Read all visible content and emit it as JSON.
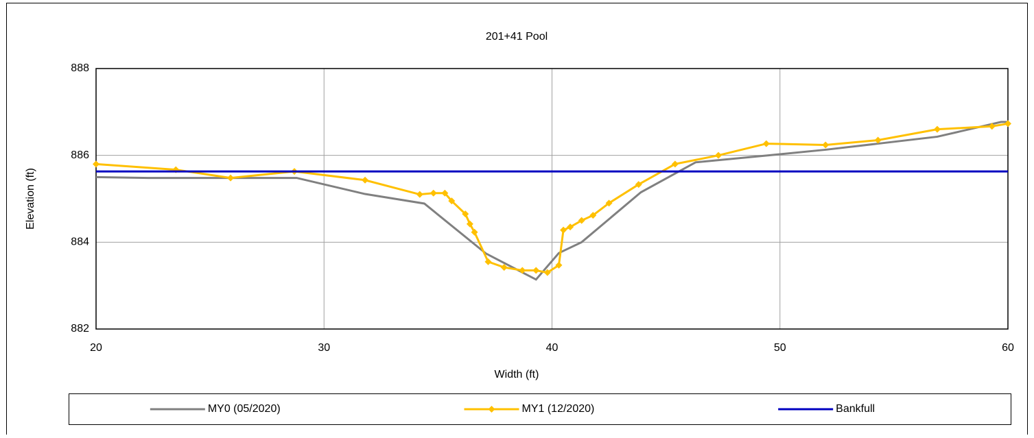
{
  "chart_data": {
    "type": "line",
    "title": "201+41 Pool",
    "x_label": "Width (ft)",
    "y_label": "Elevation (ft)",
    "xlim": [
      20,
      60
    ],
    "xticks": [
      20,
      30,
      40,
      50,
      60
    ],
    "ylim": [
      882,
      888
    ],
    "yticks": [
      882,
      884,
      886,
      888
    ],
    "grid": true,
    "legend": "bottom",
    "series": [
      {
        "name": "MY0 (05/2020)",
        "color": "#808080",
        "marker": "none",
        "x": [
          20,
          22.3,
          28.8,
          31.8,
          34.4,
          37.1,
          39.3,
          40.3,
          41.3,
          43.9,
          46.3,
          49.5,
          52.0,
          54.3,
          56.9,
          59.7,
          60
        ],
        "values": [
          885.5,
          885.48,
          885.48,
          885.11,
          884.89,
          883.74,
          883.14,
          883.75,
          884.0,
          885.15,
          885.84,
          886.0,
          886.13,
          886.27,
          886.43,
          886.77,
          886.77
        ]
      },
      {
        "name": "MY1 (12/2020)",
        "color": "#ffc000",
        "marker": "diamond",
        "x": [
          20,
          23.5,
          25.9,
          28.7,
          31.8,
          34.2,
          34.8,
          35.3,
          35.6,
          36.2,
          36.4,
          36.6,
          37.2,
          37.9,
          38.7,
          39.3,
          39.8,
          40.3,
          40.5,
          40.8,
          41.3,
          41.8,
          42.5,
          43.8,
          45.4,
          47.3,
          49.4,
          52.0,
          54.3,
          56.9,
          59.3,
          60
        ],
        "values": [
          885.8,
          885.67,
          885.48,
          885.63,
          885.43,
          885.1,
          885.13,
          885.13,
          884.95,
          884.65,
          884.42,
          884.23,
          883.55,
          883.42,
          883.35,
          883.35,
          883.3,
          883.47,
          884.28,
          884.35,
          884.5,
          884.62,
          884.9,
          885.33,
          885.8,
          886.0,
          886.27,
          886.24,
          886.35,
          886.6,
          886.67,
          886.73
        ]
      },
      {
        "name": "Bankfull",
        "color": "#0000c0",
        "marker": "none",
        "x": [
          20,
          60
        ],
        "values": [
          885.63,
          885.63
        ]
      }
    ]
  }
}
